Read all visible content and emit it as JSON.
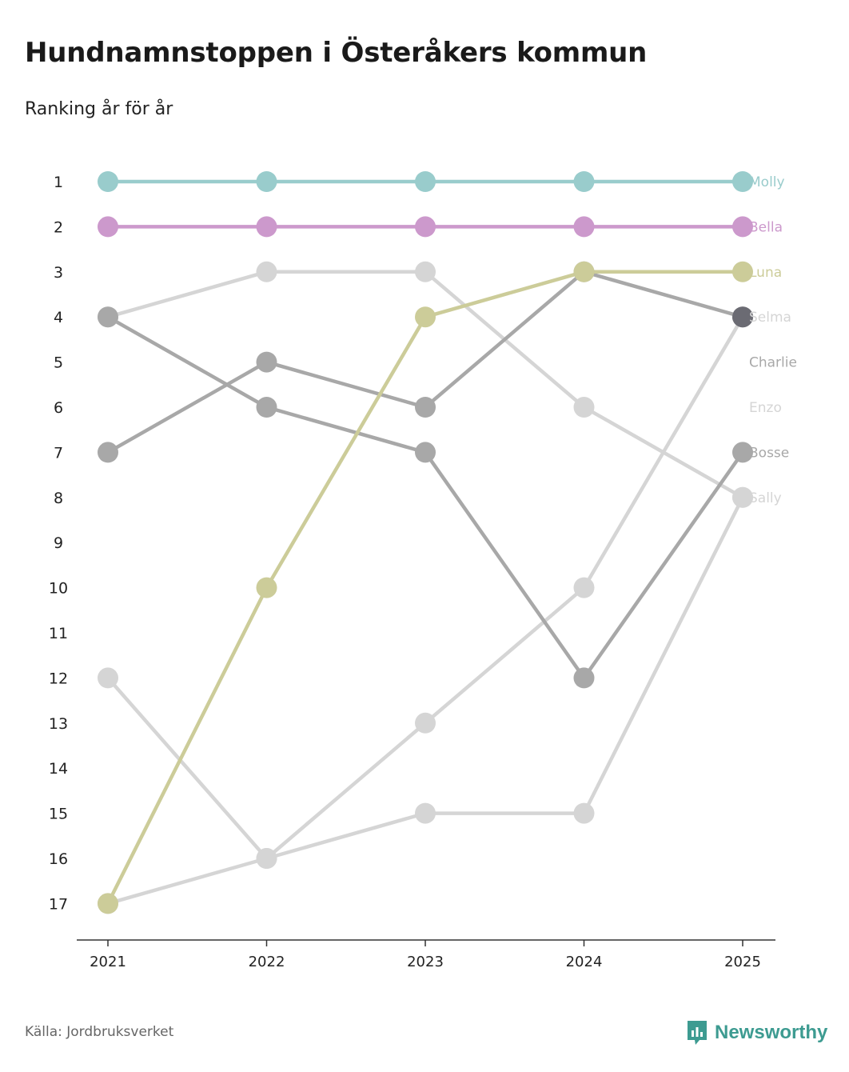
{
  "title": "Hundnamnstoppen i Österåkers kommun",
  "subtitle": "Ranking år för år",
  "source": "Källa: Jordbruksverket",
  "brand": "Newsworthy",
  "colors": {
    "teal": "#99cccc",
    "purple": "#cc99cc",
    "olive": "#cccc99",
    "gray_light": "#d5d5d5",
    "gray_mid": "#a8a8a8",
    "gray_dark": "#6b6b73",
    "brand": "#3d9b91"
  },
  "chart_data": {
    "type": "line",
    "title": "Hundnamnstoppen i Österåkers kommun",
    "subtitle": "Ranking år för år",
    "x": [
      "2021",
      "2022",
      "2023",
      "2024",
      "2025"
    ],
    "y_ticks": [
      "1",
      "2",
      "3",
      "4",
      "5",
      "6",
      "7",
      "8",
      "9",
      "10",
      "11",
      "12",
      "13",
      "14",
      "15",
      "16",
      "17"
    ],
    "ylim": [
      1,
      17
    ],
    "y_inverted": true,
    "xlabel": "",
    "ylabel": "",
    "series": [
      {
        "name": "Sally",
        "color": "#d5d5d5",
        "values": [
          12,
          16,
          15,
          15,
          8
        ],
        "label_y": 8
      },
      {
        "name": "Enzo",
        "color": "#d5d5d5",
        "values": [
          17,
          16,
          13,
          10,
          4
        ],
        "label_y": 6
      },
      {
        "name": "Selma",
        "color": "#d5d5d5",
        "values": [
          4,
          3,
          3,
          6,
          8
        ],
        "label_y": 4
      },
      {
        "name": "Bosse",
        "color": "#a8a8a8",
        "values": [
          4,
          6,
          7,
          12,
          7
        ],
        "label_y": 7
      },
      {
        "name": "Charlie",
        "color": "#a8a8a8",
        "values": [
          7,
          5,
          6,
          3,
          4
        ],
        "label_y": 5
      },
      {
        "name": "Luna",
        "color": "#cccc99",
        "values": [
          17,
          10,
          4,
          3,
          3
        ],
        "label_y": 3
      },
      {
        "name": "Bella",
        "color": "#cc99cc",
        "values": [
          2,
          2,
          2,
          2,
          2
        ],
        "label_y": 2
      },
      {
        "name": "Molly",
        "color": "#99cccc",
        "values": [
          1,
          1,
          1,
          1,
          1
        ],
        "label_y": 1
      }
    ]
  }
}
